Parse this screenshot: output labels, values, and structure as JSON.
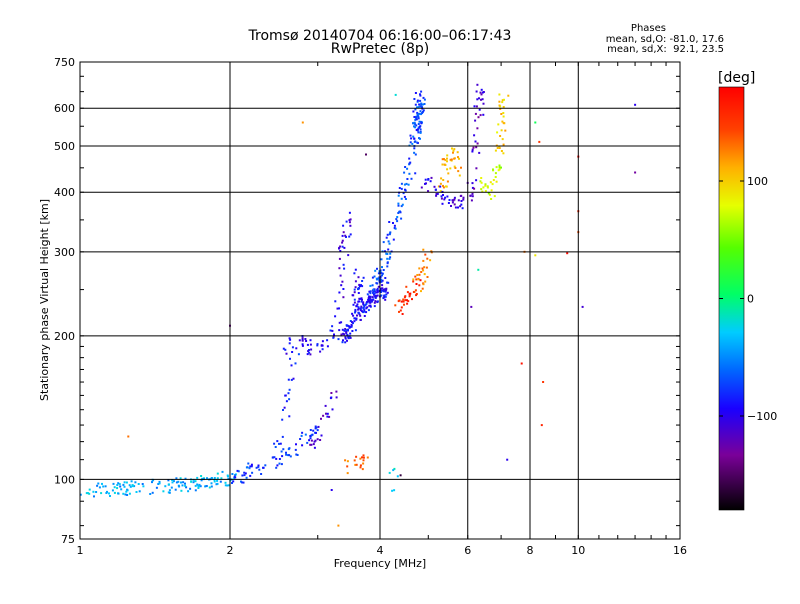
{
  "chart_data": {
    "type": "scatter",
    "title": "Tromsø 20140704 06:16:00–06:17:43",
    "subtitle": "RwPretec (8p)",
    "xlabel": "Frequency [MHz]",
    "ylabel": "Stationary phase Virtual Height [km]",
    "x_scale": "log",
    "y_scale": "log",
    "xlim": [
      1,
      16
    ],
    "ylim": [
      75,
      750
    ],
    "x_ticks": [
      1,
      2,
      4,
      6,
      8,
      10,
      16
    ],
    "x_tick_labels": [
      "1",
      "2",
      "4",
      "6",
      "8",
      "10",
      "16"
    ],
    "x_grid": [
      2,
      4,
      6,
      8,
      10
    ],
    "y_ticks": [
      75,
      100,
      200,
      300,
      400,
      500,
      600,
      750
    ],
    "y_tick_labels": [
      "75",
      "100",
      "200",
      "300",
      "400",
      "500",
      "600",
      "750"
    ],
    "y_grid": [
      100,
      200,
      300,
      400,
      500,
      600
    ],
    "grid": true,
    "phase_panel": {
      "title": "Phases",
      "line1": "mean, sd,O: -81.0, 17.6",
      "line2": "mean, sd,X:  92.1, 23.5"
    },
    "colorbar": {
      "label": "[deg]",
      "range": [
        -180,
        180
      ],
      "ticks": [
        100,
        0,
        -100
      ],
      "tick_labels": [
        "100",
        "0",
        "−100"
      ],
      "colormap": "rainbow"
    },
    "traces": [
      {
        "x": [
          1.0,
          1.15,
          1.3,
          1.5,
          1.7,
          1.9,
          2.05
        ],
        "y": [
          94,
          95,
          96,
          97,
          98,
          100,
          101
        ],
        "phase": -40,
        "count": 150
      },
      {
        "x": [
          2.05,
          2.2,
          2.4,
          2.6,
          2.8,
          3.0
        ],
        "y": [
          101,
          104,
          108,
          112,
          120,
          128
        ],
        "phase": -75,
        "count": 70
      },
      {
        "x": [
          2.5,
          2.55,
          2.6,
          2.65,
          2.7
        ],
        "y": [
          115,
          125,
          140,
          160,
          185
        ],
        "phase": -85,
        "count": 25
      },
      {
        "x": [
          2.55,
          2.7,
          2.85,
          3.0,
          3.15,
          3.3
        ],
        "y": [
          185,
          195,
          190,
          188,
          195,
          210
        ],
        "phase": -95,
        "count": 45
      },
      {
        "x": [
          3.3,
          3.33,
          3.36,
          3.4,
          3.45
        ],
        "y": [
          200,
          240,
          280,
          320,
          355
        ],
        "phase": -100,
        "count": 40
      },
      {
        "x": [
          3.35,
          3.5,
          3.7,
          3.85,
          4.0,
          4.1
        ],
        "y": [
          195,
          210,
          230,
          240,
          245,
          255
        ],
        "phase": -90,
        "count": 170
      },
      {
        "x": [
          3.55,
          3.6,
          3.65
        ],
        "y": [
          225,
          250,
          270
        ],
        "phase": -95,
        "count": 30
      },
      {
        "x": [
          3.9,
          4.05,
          4.2,
          4.4,
          4.6,
          4.75,
          4.85
        ],
        "y": [
          250,
          280,
          320,
          380,
          450,
          560,
          640
        ],
        "phase": -70,
        "count": 150
      },
      {
        "x": [
          4.7,
          4.75,
          4.8
        ],
        "y": [
          500,
          560,
          630
        ],
        "phase": -75,
        "count": 30
      },
      {
        "x": [
          4.35,
          4.5,
          4.65,
          4.8
        ],
        "y": [
          225,
          240,
          250,
          256
        ],
        "phase": 160,
        "count": 35
      },
      {
        "x": [
          4.75,
          4.85,
          4.95,
          5.0
        ],
        "y": [
          255,
          270,
          285,
          300
        ],
        "phase": 125,
        "count": 25
      },
      {
        "x": [
          5.3,
          5.4,
          5.5,
          5.65,
          5.8
        ],
        "y": [
          400,
          440,
          480,
          470,
          440
        ],
        "phase": 110,
        "count": 40
      },
      {
        "x": [
          4.9,
          5.2,
          5.5,
          5.8,
          6.1
        ],
        "y": [
          420,
          400,
          385,
          380,
          395
        ],
        "phase": -105,
        "count": 50
      },
      {
        "x": [
          6.1,
          6.2,
          6.3,
          6.35,
          6.4
        ],
        "y": [
          400,
          480,
          560,
          620,
          650
        ],
        "phase": -115,
        "count": 35
      },
      {
        "x": [
          6.4,
          6.6,
          6.8,
          6.95
        ],
        "y": [
          420,
          400,
          420,
          460
        ],
        "phase": 70,
        "count": 30
      },
      {
        "x": [
          6.9,
          7.0,
          7.05,
          7.1
        ],
        "y": [
          470,
          540,
          600,
          650
        ],
        "phase": 100,
        "count": 30
      },
      {
        "x": [
          2.95,
          3.05,
          3.15,
          3.25
        ],
        "y": [
          118,
          128,
          140,
          150
        ],
        "phase": -110,
        "count": 25
      },
      {
        "x": [
          3.45,
          3.6,
          3.75
        ],
        "y": [
          106,
          108,
          110
        ],
        "phase": 135,
        "count": 18
      },
      {
        "x": [
          4.2,
          4.25,
          4.3
        ],
        "y": [
          110,
          100,
          92
        ],
        "phase": -30,
        "count": 6
      }
    ],
    "isolated_points": [
      {
        "x": 2.8,
        "y": 560,
        "phase": 120
      },
      {
        "x": 3.75,
        "y": 480,
        "phase": -150
      },
      {
        "x": 4.3,
        "y": 640,
        "phase": -20
      },
      {
        "x": 7.8,
        "y": 300,
        "phase": 130
      },
      {
        "x": 8.2,
        "y": 295,
        "phase": 90
      },
      {
        "x": 8.5,
        "y": 160,
        "phase": 150
      },
      {
        "x": 9.5,
        "y": 298,
        "phase": 175
      },
      {
        "x": 10.0,
        "y": 365,
        "phase": 160
      },
      {
        "x": 10.0,
        "y": 330,
        "phase": 140
      },
      {
        "x": 10.0,
        "y": 475,
        "phase": 175
      },
      {
        "x": 8.2,
        "y": 560,
        "phase": 10
      },
      {
        "x": 8.35,
        "y": 510,
        "phase": 150
      },
      {
        "x": 10.2,
        "y": 230,
        "phase": -110
      },
      {
        "x": 13.0,
        "y": 610,
        "phase": -100
      },
      {
        "x": 13.0,
        "y": 440,
        "phase": -130
      },
      {
        "x": 7.2,
        "y": 110,
        "phase": -100
      },
      {
        "x": 6.1,
        "y": 230,
        "phase": -120
      },
      {
        "x": 4.4,
        "y": 102,
        "phase": -160
      },
      {
        "x": 8.45,
        "y": 130,
        "phase": 160
      },
      {
        "x": 7.7,
        "y": 175,
        "phase": 170
      },
      {
        "x": 1.25,
        "y": 123,
        "phase": 130
      },
      {
        "x": 2.0,
        "y": 210,
        "phase": -140
      },
      {
        "x": 3.2,
        "y": 95,
        "phase": -100
      },
      {
        "x": 3.3,
        "y": 80,
        "phase": 120
      },
      {
        "x": 6.3,
        "y": 275,
        "phase": -10
      }
    ]
  }
}
